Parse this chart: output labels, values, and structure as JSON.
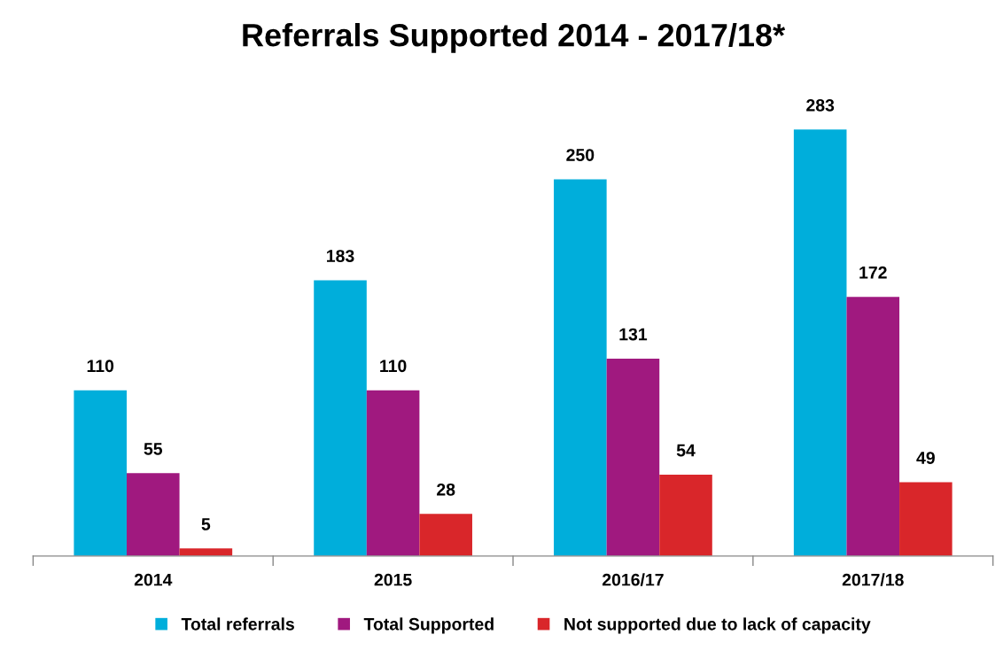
{
  "chart_data": {
    "type": "bar",
    "title": "Referrals Supported 2014 - 2017/18*",
    "categories": [
      "2014",
      "2015",
      "2016/17",
      "2017/18"
    ],
    "series": [
      {
        "name": "Total referrals",
        "color": "#00aedb",
        "values": [
          110,
          183,
          250,
          283
        ]
      },
      {
        "name": "Total Supported",
        "color": "#a0197f",
        "values": [
          55,
          110,
          131,
          172
        ]
      },
      {
        "name": "Not supported due to lack of capacity",
        "color": "#d9262a",
        "values": [
          5,
          28,
          54,
          49
        ]
      }
    ],
    "data_labels": true,
    "legend": "bottom"
  }
}
